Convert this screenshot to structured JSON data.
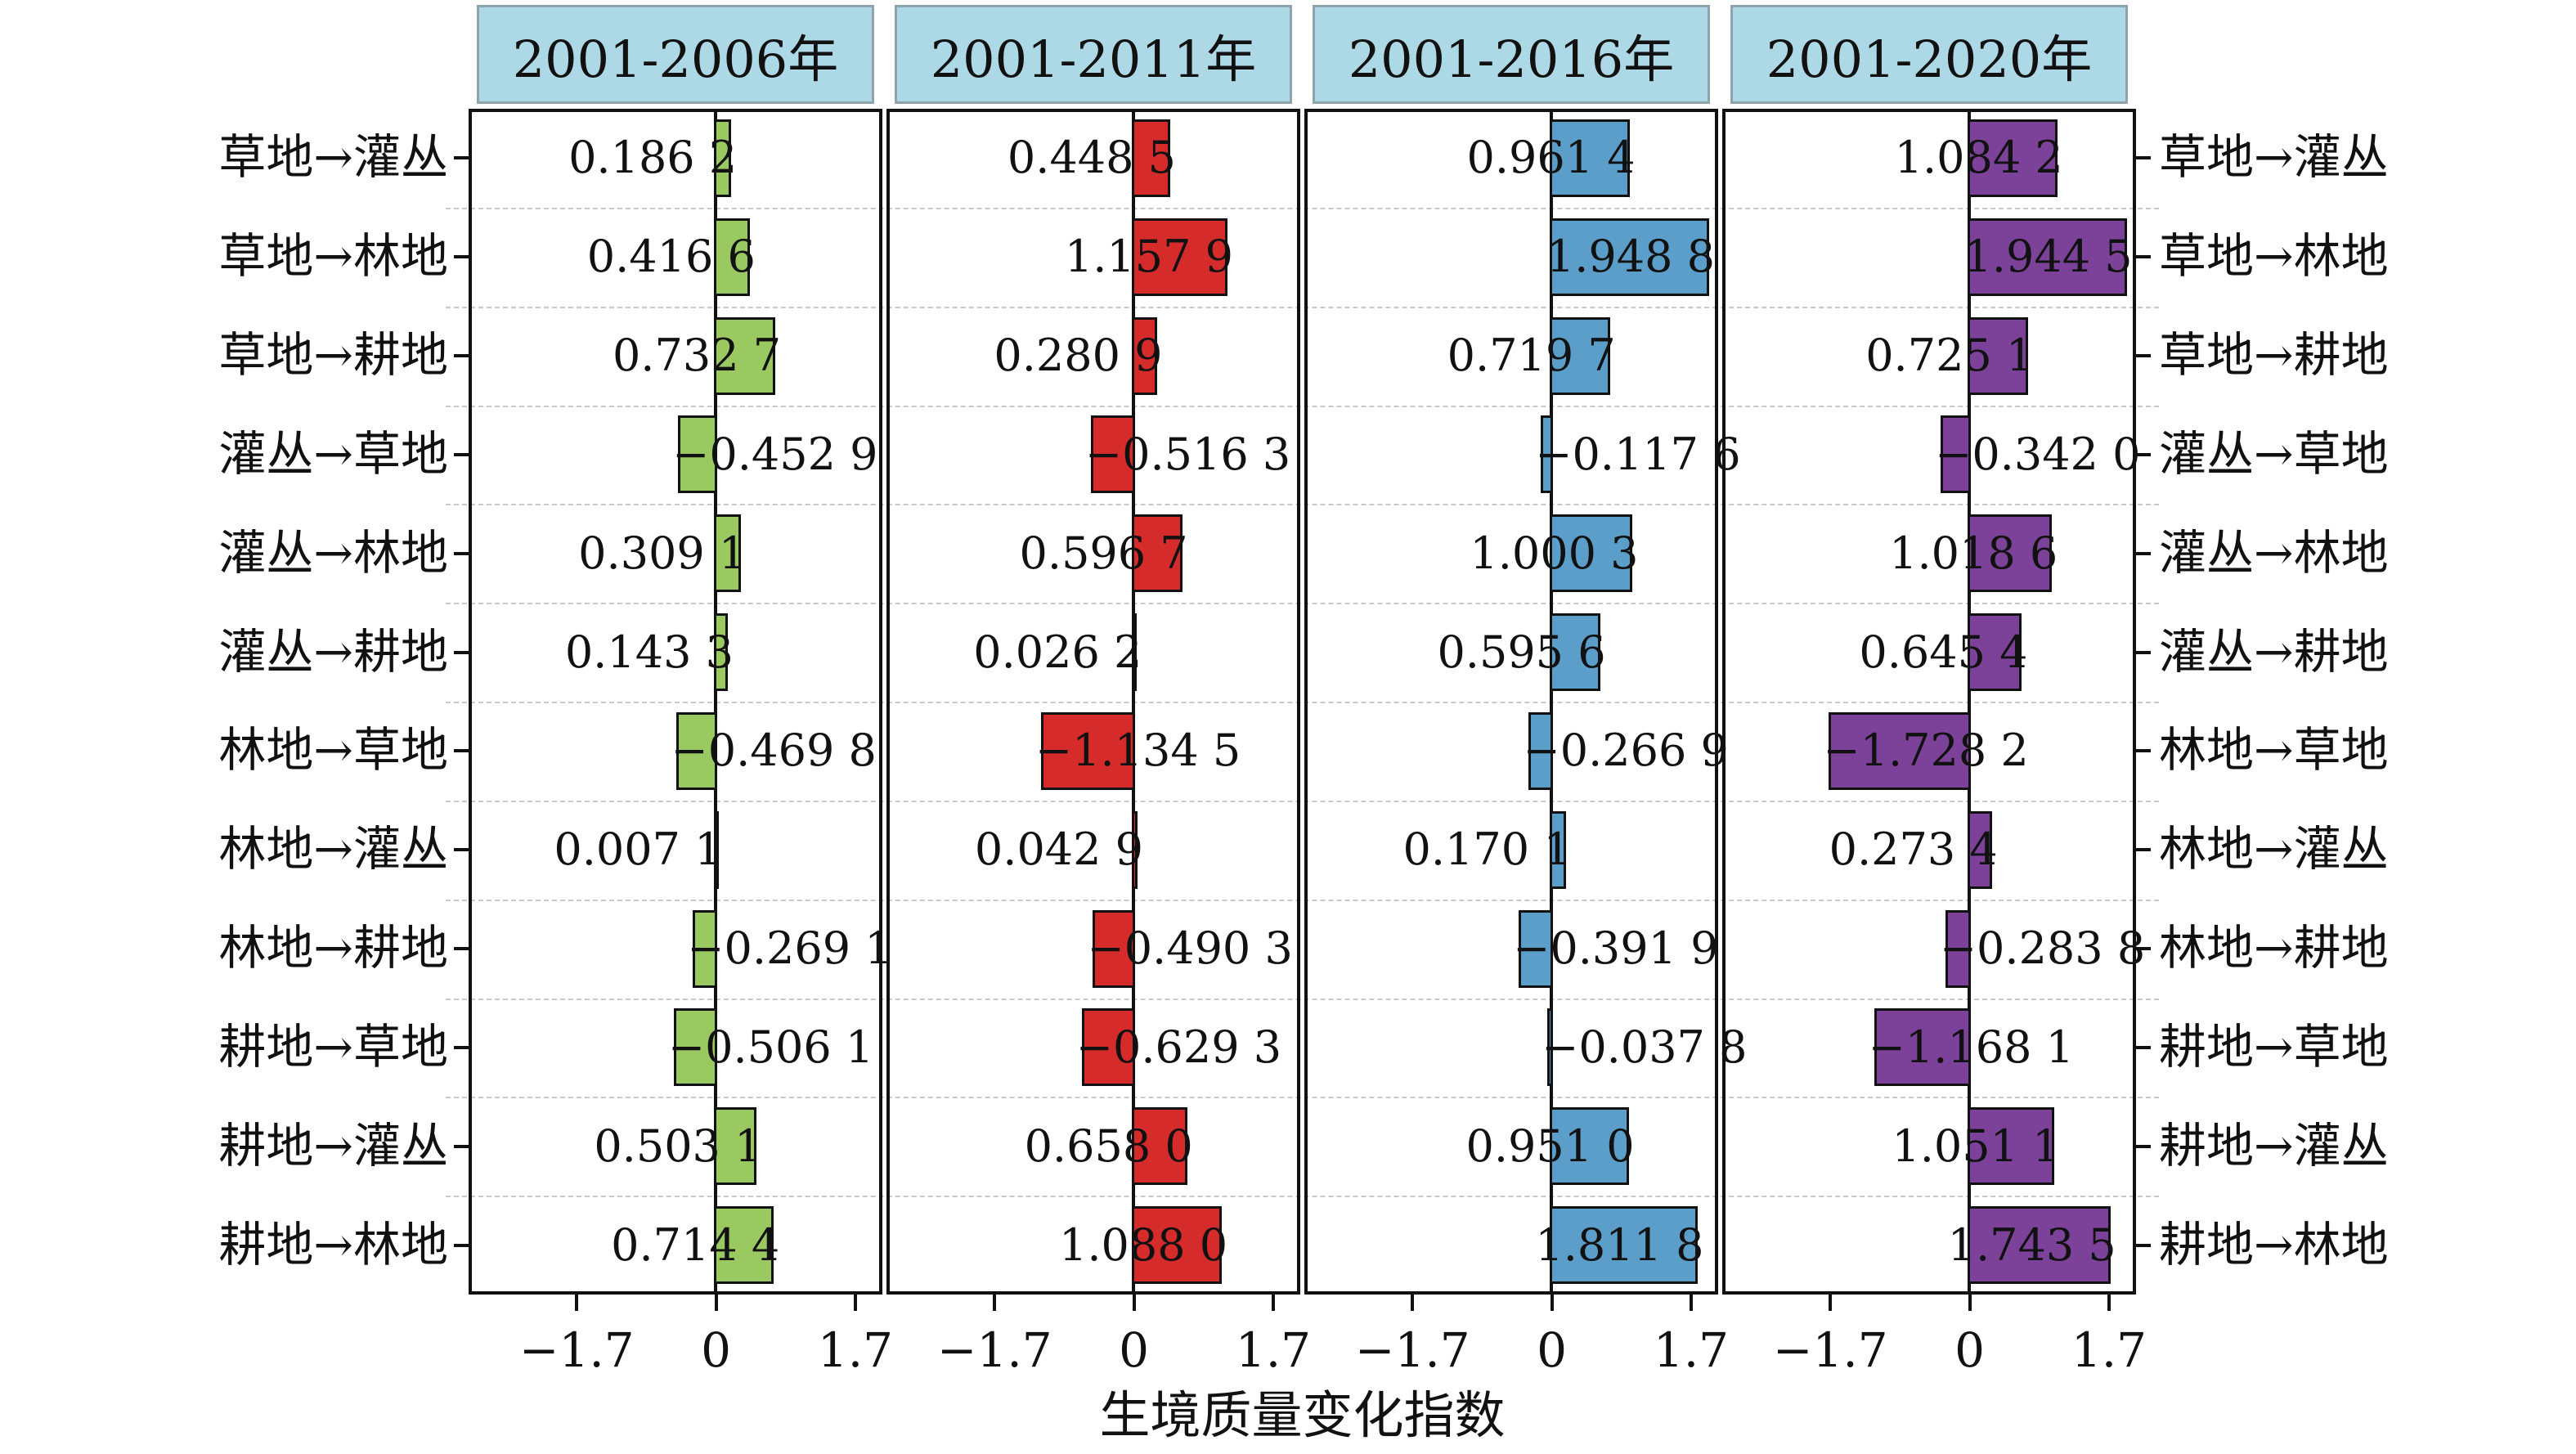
{
  "chart_data": {
    "type": "bar",
    "orientation": "horizontal",
    "xlabel": "生境质量变化指数",
    "xlim": [
      -3.02,
      2.03
    ],
    "xticks": [
      -1.7,
      0,
      1.7
    ],
    "xtick_labels": [
      "−1.7",
      "0",
      "1.7"
    ],
    "grid": "horizontal-dashed",
    "categories": [
      "草地→灌丛",
      "草地→林地",
      "草地→耕地",
      "灌丛→草地",
      "灌丛→林地",
      "灌丛→耕地",
      "林地→草地",
      "林地→灌丛",
      "林地→耕地",
      "耕地→草地",
      "耕地→灌丛",
      "耕地→林地"
    ],
    "series": [
      {
        "name": "2001-2006年",
        "color": "#9ac962",
        "values": [
          0.1862,
          0.4166,
          0.7327,
          -0.4529,
          0.3091,
          0.1433,
          -0.4698,
          0.0071,
          -0.2691,
          -0.5061,
          0.5031,
          0.7144
        ],
        "value_labels": [
          "0.186 2",
          "0.416 6",
          "0.732 7",
          "−0.452 9",
          "0.309 1",
          "0.143 3",
          "−0.469 8",
          "0.007 1",
          "−0.269 1",
          "−0.506 1",
          "0.503 1",
          "0.714 4"
        ]
      },
      {
        "name": "2001-2011年",
        "color": "#d62b2b",
        "values": [
          0.4485,
          1.1579,
          0.2809,
          -0.5163,
          0.5967,
          0.0262,
          -1.1345,
          0.0429,
          -0.4903,
          -0.6293,
          0.658,
          1.088
        ],
        "value_labels": [
          "0.448 5",
          "1.157 9",
          "0.280 9",
          "−0.516 3",
          "0.596 7",
          "0.026 2",
          "−1.134 5",
          "0.042 9",
          "−0.490 3",
          "−0.629 3",
          "0.658 0",
          "1.088 0"
        ]
      },
      {
        "name": "2001-2016年",
        "color": "#5b9ec9",
        "values": [
          0.9614,
          1.9488,
          0.7197,
          -0.1176,
          1.0003,
          0.5956,
          -0.2669,
          0.1701,
          -0.3919,
          -0.0378,
          0.951,
          1.8118
        ],
        "value_labels": [
          "0.961 4",
          "1.948 8",
          "0.719 7",
          "−0.117 6",
          "1.000 3",
          "0.595 6",
          "−0.266 9",
          "0.170 1",
          "−0.391 9",
          "−0.037 8",
          "0.951 0",
          "1.811 8"
        ]
      },
      {
        "name": "2001-2020年",
        "color": "#7c4299",
        "values": [
          1.0842,
          1.9445,
          0.7251,
          -0.342,
          1.0186,
          0.6454,
          -1.7282,
          0.2734,
          -0.2838,
          -1.1681,
          1.0511,
          1.7435
        ],
        "value_labels": [
          "1.084 2",
          "1.944 5",
          "0.725 1",
          "−0.342 0",
          "1.018 6",
          "0.645 4",
          "−1.728 2",
          "0.273 4",
          "−0.283 8",
          "−1.168 1",
          "1.051 1",
          "1.743 5"
        ]
      }
    ],
    "header_fill": "#add8e6",
    "header_border": "#8fa3ad",
    "right_labels_same_as_categories": true
  }
}
